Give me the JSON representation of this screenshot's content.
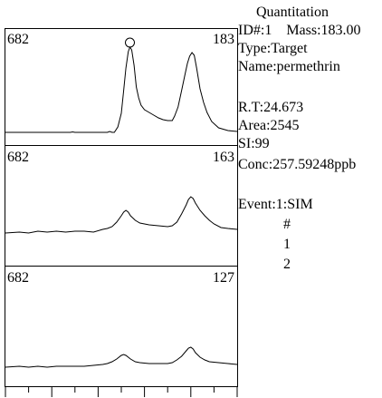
{
  "info": {
    "header": "Quantitation",
    "id_line": "ID#:1    Mass:183.00",
    "type": "Type:Target",
    "name": "Name:permethrin",
    "rt": "R.T:24.673",
    "area": "Area:2545",
    "si": "SI:99",
    "conc": "Conc:257.59248ppb",
    "event": "Event:1:SIM",
    "event_rows": [
      "#",
      "1",
      "2"
    ]
  },
  "chart_data": [
    {
      "type": "line",
      "left_label": "682",
      "right_label": "183",
      "peak_marker": true,
      "line_color": "#000000",
      "points": [
        [
          0,
          146
        ],
        [
          0.28,
          146
        ],
        [
          0.29,
          145.5
        ],
        [
          0.3,
          146
        ],
        [
          0.44,
          146
        ],
        [
          0.45,
          145
        ],
        [
          0.46,
          146
        ],
        [
          0.47,
          146
        ],
        [
          0.485,
          140
        ],
        [
          0.5,
          125
        ],
        [
          0.51,
          100
        ],
        [
          0.52,
          75
        ],
        [
          0.53,
          57
        ],
        [
          0.537,
          52
        ],
        [
          0.545,
          55
        ],
        [
          0.555,
          72
        ],
        [
          0.565,
          96
        ],
        [
          0.575,
          108
        ],
        [
          0.585,
          116
        ],
        [
          0.6,
          121
        ],
        [
          0.62,
          124
        ],
        [
          0.64,
          127
        ],
        [
          0.66,
          130
        ],
        [
          0.68,
          132
        ],
        [
          0.7,
          133
        ],
        [
          0.72,
          133
        ],
        [
          0.73,
          128
        ],
        [
          0.745,
          118
        ],
        [
          0.76,
          100
        ],
        [
          0.775,
          82
        ],
        [
          0.785,
          70
        ],
        [
          0.795,
          62
        ],
        [
          0.805,
          58
        ],
        [
          0.815,
          61
        ],
        [
          0.825,
          75
        ],
        [
          0.84,
          98
        ],
        [
          0.855,
          113
        ],
        [
          0.87,
          124
        ],
        [
          0.89,
          134
        ],
        [
          0.92,
          141
        ],
        [
          0.96,
          144
        ],
        [
          1,
          145
        ]
      ]
    },
    {
      "type": "line",
      "left_label": "682",
      "right_label": "163",
      "peak_marker": false,
      "line_color": "#000000",
      "points": [
        [
          0,
          257
        ],
        [
          0.06,
          256
        ],
        [
          0.1,
          257
        ],
        [
          0.14,
          255
        ],
        [
          0.18,
          256
        ],
        [
          0.22,
          255
        ],
        [
          0.26,
          256
        ],
        [
          0.3,
          255
        ],
        [
          0.34,
          255
        ],
        [
          0.38,
          256
        ],
        [
          0.42,
          253
        ],
        [
          0.44,
          252
        ],
        [
          0.46,
          250
        ],
        [
          0.48,
          245
        ],
        [
          0.5,
          238
        ],
        [
          0.51,
          234
        ],
        [
          0.52,
          232
        ],
        [
          0.53,
          234
        ],
        [
          0.54,
          238
        ],
        [
          0.56,
          243
        ],
        [
          0.58,
          246
        ],
        [
          0.6,
          247
        ],
        [
          0.62,
          248
        ],
        [
          0.66,
          249
        ],
        [
          0.7,
          250
        ],
        [
          0.72,
          249
        ],
        [
          0.74,
          245
        ],
        [
          0.76,
          236
        ],
        [
          0.78,
          226
        ],
        [
          0.79,
          220
        ],
        [
          0.8,
          217
        ],
        [
          0.81,
          219
        ],
        [
          0.82,
          224
        ],
        [
          0.84,
          232
        ],
        [
          0.86,
          238
        ],
        [
          0.88,
          243
        ],
        [
          0.9,
          247
        ],
        [
          0.93,
          251
        ],
        [
          0.96,
          252
        ],
        [
          1,
          253
        ]
      ]
    },
    {
      "type": "line",
      "left_label": "682",
      "right_label": "127",
      "peak_marker": false,
      "line_color": "#000000",
      "points": [
        [
          0,
          405
        ],
        [
          0.06,
          404
        ],
        [
          0.1,
          405
        ],
        [
          0.14,
          404
        ],
        [
          0.18,
          405
        ],
        [
          0.22,
          404
        ],
        [
          0.26,
          404
        ],
        [
          0.3,
          404
        ],
        [
          0.34,
          404
        ],
        [
          0.38,
          403
        ],
        [
          0.42,
          402
        ],
        [
          0.44,
          401
        ],
        [
          0.46,
          399
        ],
        [
          0.48,
          396
        ],
        [
          0.5,
          392
        ],
        [
          0.51,
          391
        ],
        [
          0.52,
          392
        ],
        [
          0.54,
          396
        ],
        [
          0.56,
          399
        ],
        [
          0.58,
          400
        ],
        [
          0.62,
          401
        ],
        [
          0.66,
          401
        ],
        [
          0.7,
          401
        ],
        [
          0.72,
          400
        ],
        [
          0.74,
          397
        ],
        [
          0.76,
          393
        ],
        [
          0.78,
          387
        ],
        [
          0.79,
          384
        ],
        [
          0.8,
          383
        ],
        [
          0.81,
          385
        ],
        [
          0.82,
          389
        ],
        [
          0.84,
          394
        ],
        [
          0.86,
          397
        ],
        [
          0.88,
          399
        ],
        [
          0.92,
          400
        ],
        [
          0.96,
          401
        ],
        [
          1,
          402
        ]
      ]
    }
  ]
}
